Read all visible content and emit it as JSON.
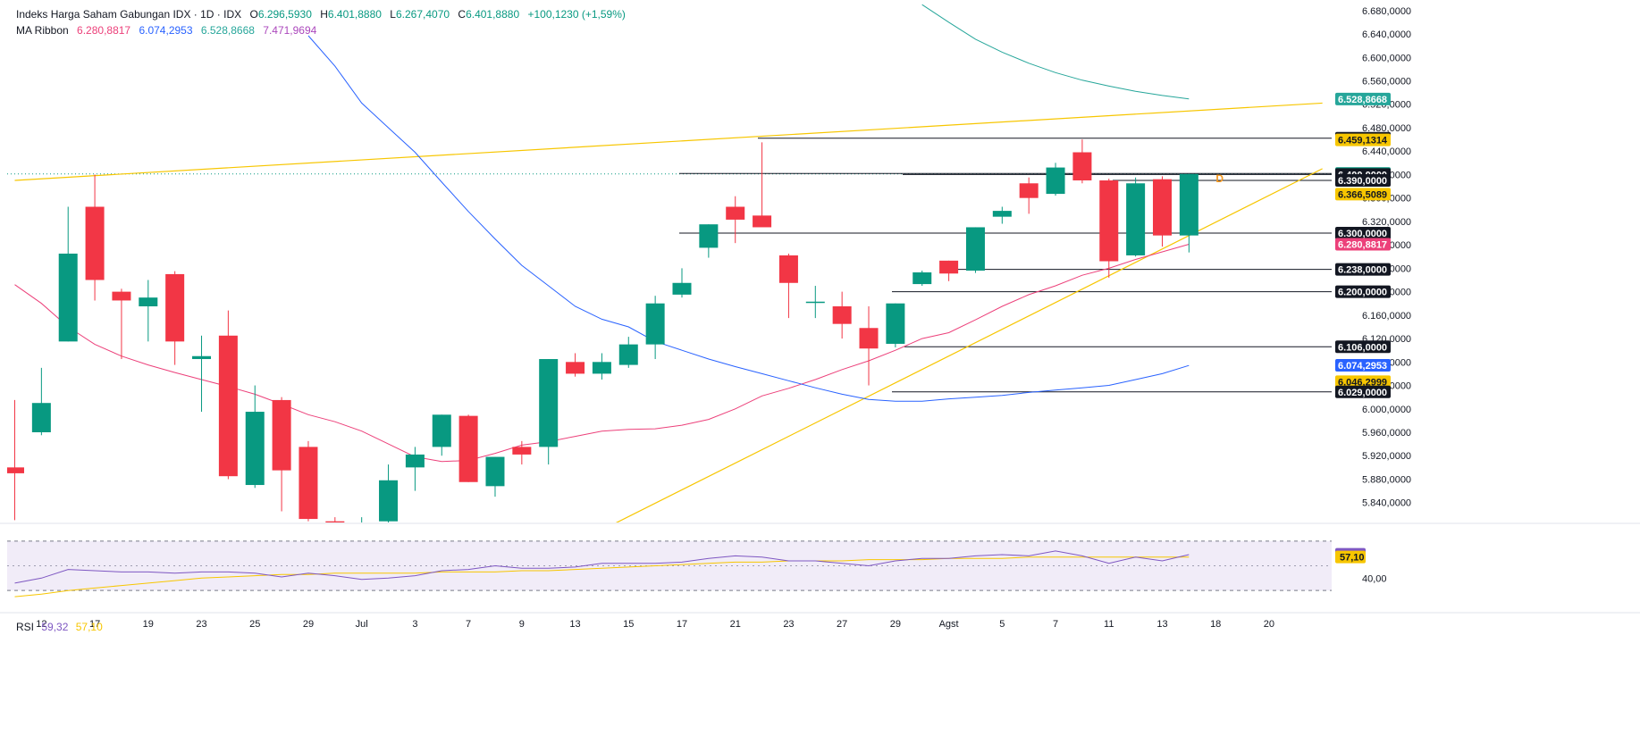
{
  "header": {
    "symbol": "Indeks Harga Saham Gabungan IDX · 1D · IDX",
    "open_label": "O",
    "open": "6.296,5930",
    "high_label": "H",
    "high": "6.401,8880",
    "low_label": "L",
    "low": "6.267,4070",
    "close_label": "C",
    "close": "6.401,8880",
    "change": "+100,1230 (+1,59%)",
    "up_color": "#089981"
  },
  "ma_ribbon": {
    "label": "MA Ribbon",
    "v1": "6.280,8817",
    "c1": "#ec407a",
    "v2": "6.074,2953",
    "c2": "#2962ff",
    "v3": "6.528,8668",
    "c3": "#26a69a",
    "v4": "7.471,9694",
    "c4": "#ab47bc"
  },
  "rsi_header": {
    "label": "RSI",
    "v1": "59,32",
    "c1": "#7e57c2",
    "v2": "57,10",
    "c2": "#f7c600"
  },
  "chart_data": {
    "type": "candlestick",
    "x_labels": [
      "12",
      "17",
      "19",
      "23",
      "25",
      "29",
      "Jul",
      "3",
      "7",
      "9",
      "13",
      "15",
      "17",
      "21",
      "23",
      "27",
      "29",
      "Agst",
      "5",
      "7",
      "11",
      "13",
      "18",
      "20"
    ],
    "y_ticks": [
      5840,
      5880,
      5920,
      5960,
      6000,
      6040,
      6080,
      6120,
      6160,
      6200,
      6240,
      6280,
      6320,
      6360,
      6400,
      6440,
      6480,
      6520,
      6560,
      6600,
      6640,
      6680
    ],
    "y_tick_labels": [
      "5.840,0000",
      "5.880,0000",
      "5.920,0000",
      "5.960,0000",
      "6.000,0000",
      "6.040,0000",
      "6.080,0000",
      "6.120,0000",
      "6.160,0000",
      "6.200,0000",
      "6.240,0000",
      "6.280,0000",
      "6.320,0000",
      "6.360,0000",
      "6.400,0000",
      "6.440,0000",
      "6.480,0000",
      "6.520,0000",
      "6.560,0000",
      "6.600,0000",
      "6.640,0000",
      "6.680,0000"
    ],
    "ylim": [
      5806,
      6698
    ],
    "candles": [
      {
        "o": 5900,
        "h": 6015,
        "l": 5810,
        "c": 5890
      },
      {
        "o": 5960,
        "h": 6070,
        "l": 5955,
        "c": 6010
      },
      {
        "o": 6115,
        "h": 6345,
        "l": 6115,
        "c": 6265
      },
      {
        "o": 6345,
        "h": 6400,
        "l": 6185,
        "c": 6220
      },
      {
        "o": 6200,
        "h": 6205,
        "l": 6085,
        "c": 6185
      },
      {
        "o": 6175,
        "h": 6220,
        "l": 6115,
        "c": 6190
      },
      {
        "o": 6230,
        "h": 6235,
        "l": 6075,
        "c": 6115
      },
      {
        "o": 6085,
        "h": 6125,
        "l": 5995,
        "c": 6090
      },
      {
        "o": 6125,
        "h": 6168,
        "l": 5880,
        "c": 5885
      },
      {
        "o": 5870,
        "h": 6040,
        "l": 5865,
        "c": 5995
      },
      {
        "o": 6015,
        "h": 6020,
        "l": 5825,
        "c": 5895
      },
      {
        "o": 5935,
        "h": 5945,
        "l": 5808,
        "c": 5812
      },
      {
        "o": 5808,
        "h": 5815,
        "l": 5790,
        "c": 5795
      },
      {
        "o": 5790,
        "h": 5815,
        "l": 5785,
        "c": 5805
      },
      {
        "o": 5808,
        "h": 5905,
        "l": 5805,
        "c": 5878
      },
      {
        "o": 5900,
        "h": 5935,
        "l": 5860,
        "c": 5922
      },
      {
        "o": 5935,
        "h": 5990,
        "l": 5920,
        "c": 5990
      },
      {
        "o": 5988,
        "h": 5990,
        "l": 5875,
        "c": 5875
      },
      {
        "o": 5868,
        "h": 5918,
        "l": 5850,
        "c": 5918
      },
      {
        "o": 5935,
        "h": 5945,
        "l": 5905,
        "c": 5922
      },
      {
        "o": 5935,
        "h": 6085,
        "l": 5905,
        "c": 6085
      },
      {
        "o": 6080,
        "h": 6095,
        "l": 6055,
        "c": 6060
      },
      {
        "o": 6060,
        "h": 6095,
        "l": 6050,
        "c": 6080
      },
      {
        "o": 6075,
        "h": 6123,
        "l": 6070,
        "c": 6110
      },
      {
        "o": 6110,
        "h": 6193,
        "l": 6085,
        "c": 6180
      },
      {
        "o": 6195,
        "h": 6240,
        "l": 6190,
        "c": 6215
      },
      {
        "o": 6275,
        "h": 6315,
        "l": 6258,
        "c": 6315
      },
      {
        "o": 6345,
        "h": 6363,
        "l": 6283,
        "c": 6323
      },
      {
        "o": 6330,
        "h": 6455,
        "l": 6312,
        "c": 6310
      },
      {
        "o": 6262,
        "h": 6265,
        "l": 6155,
        "c": 6215
      },
      {
        "o": 6183,
        "h": 6210,
        "l": 6155,
        "c": 6183
      },
      {
        "o": 6175,
        "h": 6200,
        "l": 6120,
        "c": 6145
      },
      {
        "o": 6138,
        "h": 6175,
        "l": 6040,
        "c": 6103
      },
      {
        "o": 6111,
        "h": 6180,
        "l": 6105,
        "c": 6180
      },
      {
        "o": 6213,
        "h": 6236,
        "l": 6210,
        "c": 6233
      },
      {
        "o": 6253,
        "h": 6253,
        "l": 6218,
        "c": 6231
      },
      {
        "o": 6236,
        "h": 6310,
        "l": 6232,
        "c": 6310
      },
      {
        "o": 6328,
        "h": 6345,
        "l": 6316,
        "c": 6338
      },
      {
        "o": 6385,
        "h": 6395,
        "l": 6333,
        "c": 6360
      },
      {
        "o": 6367,
        "h": 6420,
        "l": 6364,
        "c": 6412
      },
      {
        "o": 6438,
        "h": 6460,
        "l": 6385,
        "c": 6390
      },
      {
        "o": 6390,
        "h": 6393,
        "l": 6224,
        "c": 6252
      },
      {
        "o": 6262,
        "h": 6395,
        "l": 6260,
        "c": 6385
      },
      {
        "o": 6392,
        "h": 6397,
        "l": 6277,
        "c": 6296
      },
      {
        "o": 6296,
        "h": 6401,
        "l": 6267,
        "c": 6401
      }
    ],
    "series": [
      {
        "name": "MA 6.280,8817",
        "color": "#ec407a",
        "values": [
          6212,
          6180,
          6140,
          6110,
          6090,
          6075,
          6062,
          6050,
          6038,
          6025,
          6008,
          5990,
          5978,
          5962,
          5940,
          5918,
          5910,
          5912,
          5924,
          5938,
          5944,
          5953,
          5962,
          5965,
          5966,
          5972,
          5982,
          6000,
          6022,
          6035,
          6050,
          6067,
          6082,
          6100,
          6120,
          6130,
          6152,
          6175,
          6195,
          6210,
          6228,
          6240,
          6255,
          6268,
          6281
        ]
      },
      {
        "name": "MA 6.074,2953",
        "color": "#2962ff",
        "values": [
          null,
          null,
          null,
          null,
          null,
          null,
          null,
          null,
          null,
          null,
          null,
          6637,
          6585,
          6522,
          6480,
          6438,
          6387,
          6337,
          6290,
          6245,
          6210,
          6175,
          6153,
          6140,
          6115,
          6100,
          6085,
          6072,
          6060,
          6048,
          6036,
          6025,
          6016,
          6013,
          6013,
          6017,
          6020,
          6023,
          6028,
          6032,
          6036,
          6040,
          6050,
          6060,
          6074
        ]
      },
      {
        "name": "MA 6.528,8668",
        "color": "#26a69a",
        "values": [
          null,
          null,
          null,
          null,
          null,
          null,
          null,
          null,
          null,
          null,
          null,
          null,
          null,
          null,
          null,
          null,
          null,
          null,
          null,
          null,
          null,
          null,
          null,
          null,
          null,
          null,
          null,
          null,
          null,
          null,
          null,
          null,
          null,
          null,
          6690,
          6660,
          6631,
          6609,
          6590,
          6574,
          6561,
          6551,
          6542,
          6535,
          6529
        ]
      }
    ],
    "price_lines": [
      {
        "value": "6.462,0000",
        "v": 6462
      },
      {
        "value": "6.401,8880",
        "v": 6401.888
      },
      {
        "value": "6.400,0000",
        "v": 6400
      },
      {
        "value": "6.390,0000",
        "v": 6390
      },
      {
        "value": "6.300,0000",
        "v": 6300
      },
      {
        "value": "6.238,0000",
        "v": 6238
      },
      {
        "value": "6.200,0000",
        "v": 6200
      },
      {
        "value": "6.106,0000",
        "v": 6106
      },
      {
        "value": "6.029,0000",
        "v": 6029
      }
    ],
    "right_labels": [
      {
        "text": "6.528,8668",
        "v": 6528.8668,
        "bg": "#26a69a",
        "fg": "#ffffff"
      },
      {
        "text": "6.462,0000",
        "v": 6462,
        "bg": "#131722",
        "fg": "#ffffff"
      },
      {
        "text": "6.459,1314",
        "v": 6459.1314,
        "bg": "#f7c600",
        "fg": "#131722"
      },
      {
        "text": "6.401,8880",
        "v": 6401.888,
        "bg": "#089981",
        "fg": "#ffffff"
      },
      {
        "text": "6.400,0000",
        "v": 6400,
        "bg": "#131722",
        "fg": "#ffffff"
      },
      {
        "text": "6.390,0000",
        "v": 6390,
        "bg": "#131722",
        "fg": "#ffffff"
      },
      {
        "text": "6.366,5089",
        "v": 6366.5089,
        "bg": "#f7c600",
        "fg": "#131722"
      },
      {
        "text": "6.300,0000",
        "v": 6300,
        "bg": "#131722",
        "fg": "#ffffff"
      },
      {
        "text": "6.280,8817",
        "v": 6280.8817,
        "bg": "#ec407a",
        "fg": "#ffffff"
      },
      {
        "text": "6.238,0000",
        "v": 6238,
        "bg": "#131722",
        "fg": "#ffffff"
      },
      {
        "text": "6.200,0000",
        "v": 6200,
        "bg": "#131722",
        "fg": "#ffffff"
      },
      {
        "text": "6.106,0000",
        "v": 6106,
        "bg": "#131722",
        "fg": "#ffffff"
      },
      {
        "text": "6.074,2953",
        "v": 6074.2953,
        "bg": "#2962ff",
        "fg": "#ffffff"
      },
      {
        "text": "6.046,2999",
        "v": 6046.2999,
        "bg": "#f7c600",
        "fg": "#131722"
      },
      {
        "text": "6.029,0000",
        "v": 6029,
        "bg": "#131722",
        "fg": "#ffffff"
      }
    ],
    "trendlines": [
      {
        "name": "upper-resistance",
        "color": "#f7c600",
        "from": {
          "i": 0,
          "v": 6390
        },
        "to": {
          "i": 49,
          "v": 6522
        }
      },
      {
        "name": "lower-support",
        "color": "#f7c600",
        "from": {
          "i": 22.3,
          "v": 5800
        },
        "to": {
          "i": 49,
          "v": 6410
        }
      }
    ],
    "marker_label": "D",
    "rsi": {
      "y_tick_label": "40,00",
      "ylim": [
        20,
        80
      ],
      "rsi_line": {
        "name": "RSI 59,32",
        "color": "#7e57c2",
        "values": [
          36,
          40,
          47,
          46,
          45,
          45,
          44,
          45,
          45,
          44,
          41,
          44,
          42,
          39,
          40,
          42,
          46,
          47,
          50,
          48,
          48,
          49,
          52,
          52,
          52,
          53,
          56,
          58,
          57,
          54,
          54,
          52,
          50,
          54,
          56,
          56,
          58,
          59,
          58,
          62,
          58,
          52,
          57,
          54,
          59
        ]
      },
      "ma_line": {
        "name": "MA 57,10",
        "color": "#f7c600",
        "values": [
          25,
          27,
          30,
          32,
          34,
          36,
          38,
          40,
          41,
          42,
          43,
          43,
          44,
          44,
          44,
          44,
          45,
          45,
          45,
          46,
          46,
          47,
          48,
          49,
          50,
          51,
          52,
          53,
          53,
          54,
          54,
          54,
          55,
          55,
          55,
          56,
          56,
          56,
          57,
          57,
          57,
          57,
          57,
          57,
          57
        ]
      },
      "value_labels": [
        {
          "text": "59,32",
          "v": 59.32,
          "bg": "#7e57c2",
          "fg": "#ffffff"
        },
        {
          "text": "57,10",
          "v": 57.1,
          "bg": "#f7c600",
          "fg": "#131722"
        }
      ]
    }
  }
}
